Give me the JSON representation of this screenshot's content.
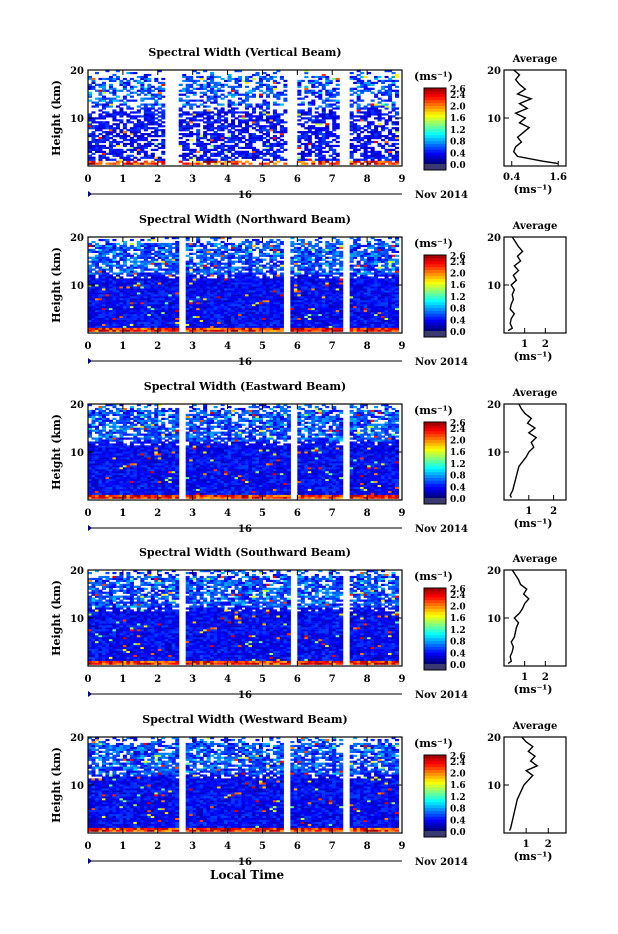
{
  "chart_data": [
    {
      "type": "heatmap",
      "title": "Spectral Width (Vertical Beam)",
      "ylabel": "Height (km)",
      "x_unit": "Local Time (hours)",
      "xlim": [
        0,
        9
      ],
      "ylim": [
        0,
        20
      ],
      "xticks": [
        "0",
        "1",
        "2",
        "3",
        "4",
        "5",
        "6",
        "7",
        "8",
        "9"
      ],
      "yticks": [
        "10",
        "20"
      ],
      "day_label": "16",
      "date_label": "Nov 2014",
      "colorbar": {
        "unit": "(ms⁻¹)",
        "ticks": [
          "2.6",
          "2.4",
          "2.0",
          "1.6",
          "1.2",
          "0.8",
          "0.4",
          "0.0"
        ],
        "range": [
          0,
          2.6
        ]
      },
      "data_gaps": [
        [
          2.2,
          2.6
        ],
        [
          5.7,
          6.0
        ],
        [
          7.2,
          7.5
        ]
      ],
      "average_profile": {
        "title": "Average",
        "xlabel": "(ms⁻¹)",
        "xticks": [
          "0.4",
          "1.6"
        ],
        "xlim": [
          0.2,
          1.8
        ],
        "heights": [
          0.5,
          1,
          2,
          3,
          4,
          5,
          6,
          7,
          8,
          9,
          10,
          11,
          12,
          13,
          14,
          15,
          16,
          17,
          18,
          19,
          20
        ],
        "values": [
          1.6,
          1.2,
          0.55,
          0.45,
          0.5,
          0.65,
          0.55,
          0.7,
          0.85,
          0.6,
          0.75,
          0.5,
          0.8,
          0.6,
          0.9,
          0.55,
          0.75,
          0.6,
          0.5,
          0.6,
          0.45
        ]
      }
    },
    {
      "type": "heatmap",
      "title": "Spectral Width (Northward Beam)",
      "ylabel": "Height (km)",
      "x_unit": "Local Time (hours)",
      "xlim": [
        0,
        9
      ],
      "ylim": [
        0,
        20
      ],
      "xticks": [
        "0",
        "1",
        "2",
        "3",
        "4",
        "5",
        "6",
        "7",
        "8",
        "9"
      ],
      "yticks": [
        "10",
        "20"
      ],
      "day_label": "16",
      "date_label": "Nov 2014",
      "colorbar": {
        "unit": "(ms⁻¹)",
        "ticks": [
          "2.6",
          "2.4",
          "2.0",
          "1.6",
          "1.2",
          "0.8",
          "0.4",
          "0.0"
        ],
        "range": [
          0,
          2.6
        ]
      },
      "data_gaps": [
        [
          2.6,
          2.8
        ],
        [
          5.6,
          5.8
        ],
        [
          7.3,
          7.5
        ]
      ],
      "average_profile": {
        "title": "Average",
        "xlabel": "(ms⁻¹)",
        "xticks": [
          "1",
          "2"
        ],
        "xlim": [
          0,
          3
        ],
        "heights": [
          0.5,
          1,
          2,
          3,
          4,
          5,
          6,
          7,
          8,
          9,
          10,
          11,
          12,
          13,
          14,
          15,
          16,
          17,
          18,
          19,
          20
        ],
        "values": [
          0.2,
          0.4,
          0.3,
          0.35,
          0.5,
          0.3,
          0.35,
          0.45,
          0.4,
          0.5,
          0.35,
          0.6,
          0.45,
          0.7,
          0.5,
          0.8,
          0.65,
          0.9,
          0.7,
          0.55,
          0.4
        ]
      }
    },
    {
      "type": "heatmap",
      "title": "Spectral Width (Eastward Beam)",
      "ylabel": "Height (km)",
      "x_unit": "Local Time (hours)",
      "xlim": [
        0,
        9
      ],
      "ylim": [
        0,
        20
      ],
      "xticks": [
        "0",
        "1",
        "2",
        "3",
        "4",
        "5",
        "6",
        "7",
        "8",
        "9"
      ],
      "yticks": [
        "10",
        "20"
      ],
      "day_label": "16",
      "date_label": "Nov 2014",
      "colorbar": {
        "unit": "(ms⁻¹)",
        "ticks": [
          "2.6",
          "2.4",
          "2.0",
          "1.6",
          "1.2",
          "0.8",
          "0.4",
          "0.0"
        ],
        "range": [
          0,
          2.6
        ]
      },
      "data_gaps": [
        [
          2.6,
          2.8
        ],
        [
          5.8,
          6.0
        ],
        [
          7.3,
          7.5
        ]
      ],
      "average_profile": {
        "title": "Average",
        "xlabel": "(ms⁻¹)",
        "xticks": [
          "1",
          "2"
        ],
        "xlim": [
          0,
          2.5
        ],
        "heights": [
          0.5,
          1,
          2,
          3,
          4,
          5,
          6,
          7,
          8,
          9,
          10,
          11,
          12,
          13,
          14,
          15,
          16,
          17,
          18,
          19,
          20
        ],
        "values": [
          0.3,
          0.25,
          0.35,
          0.4,
          0.45,
          0.5,
          0.55,
          0.6,
          0.75,
          0.9,
          1.0,
          1.2,
          1.1,
          1.3,
          1.0,
          1.25,
          0.95,
          1.1,
          0.85,
          0.7,
          0.6
        ]
      }
    },
    {
      "type": "heatmap",
      "title": "Spectral Width (Southward Beam)",
      "ylabel": "Height (km)",
      "x_unit": "Local Time (hours)",
      "xlim": [
        0,
        9
      ],
      "ylim": [
        0,
        20
      ],
      "xticks": [
        "0",
        "1",
        "2",
        "3",
        "4",
        "5",
        "6",
        "7",
        "8",
        "9"
      ],
      "yticks": [
        "10",
        "20"
      ],
      "day_label": "16",
      "date_label": "Nov 2014",
      "colorbar": {
        "unit": "(ms⁻¹)",
        "ticks": [
          "2.6",
          "2.4",
          "2.0",
          "1.6",
          "1.2",
          "0.8",
          "0.4",
          "0.0"
        ],
        "range": [
          0,
          2.6
        ]
      },
      "data_gaps": [
        [
          2.6,
          2.8
        ],
        [
          5.8,
          6.0
        ],
        [
          7.3,
          7.5
        ]
      ],
      "average_profile": {
        "title": "Average",
        "xlabel": "(ms⁻¹)",
        "xticks": [
          "1",
          "2"
        ],
        "xlim": [
          0,
          3
        ],
        "heights": [
          0.5,
          1,
          2,
          3,
          4,
          5,
          6,
          7,
          8,
          9,
          10,
          11,
          12,
          13,
          14,
          15,
          16,
          17,
          18,
          19,
          20
        ],
        "values": [
          0.2,
          0.35,
          0.3,
          0.4,
          0.45,
          0.35,
          0.5,
          0.55,
          0.6,
          0.7,
          0.5,
          0.75,
          0.9,
          1.0,
          1.2,
          0.95,
          1.1,
          0.8,
          0.7,
          0.55,
          0.4
        ]
      }
    },
    {
      "type": "heatmap",
      "title": "Spectral Width (Westward Beam)",
      "ylabel": "Height (km)",
      "x_unit": "Local Time (hours)",
      "xlim": [
        0,
        9
      ],
      "ylim": [
        0,
        20
      ],
      "xticks": [
        "0",
        "1",
        "2",
        "3",
        "4",
        "5",
        "6",
        "7",
        "8",
        "9"
      ],
      "yticks": [
        "10",
        "20"
      ],
      "day_label": "16",
      "date_label": "Nov 2014",
      "colorbar": {
        "unit": "(ms⁻¹)",
        "ticks": [
          "2.6",
          "2.4",
          "2.0",
          "1.6",
          "1.2",
          "0.8",
          "0.4",
          "0.0"
        ],
        "range": [
          0,
          2.6
        ]
      },
      "data_gaps": [
        [
          2.6,
          2.8
        ],
        [
          5.6,
          5.8
        ],
        [
          7.3,
          7.5
        ]
      ],
      "average_profile": {
        "title": "Average",
        "xlabel": "(ms⁻¹)",
        "xticks": [
          "1",
          "2"
        ],
        "xlim": [
          0,
          2.8
        ],
        "heights": [
          0.5,
          1,
          2,
          3,
          4,
          5,
          6,
          7,
          8,
          9,
          10,
          11,
          12,
          13,
          14,
          15,
          16,
          17,
          18,
          19,
          20
        ],
        "values": [
          0.25,
          0.3,
          0.35,
          0.4,
          0.45,
          0.5,
          0.55,
          0.6,
          0.7,
          0.8,
          0.9,
          1.1,
          1.3,
          1.0,
          1.5,
          1.2,
          1.4,
          1.1,
          1.3,
          1.0,
          0.8
        ]
      }
    }
  ],
  "xlabel_bottom": "Local Time"
}
